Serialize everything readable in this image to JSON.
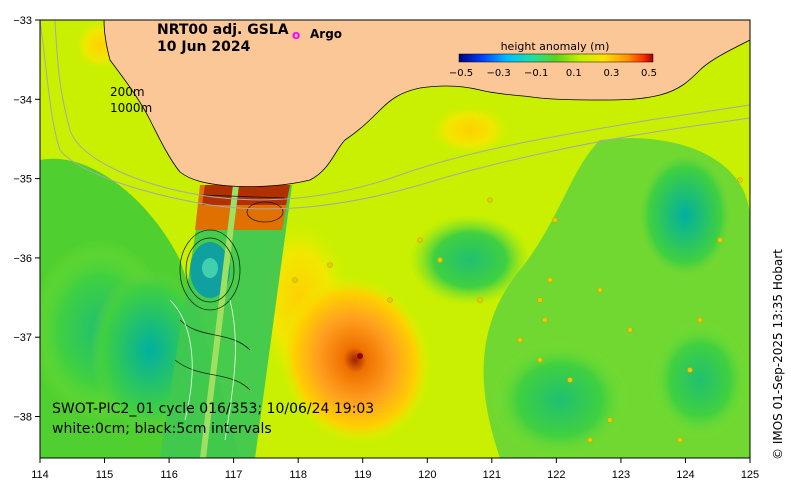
{
  "map": {
    "title_line1": "NRT00 adj. GSLA",
    "title_line2": "10 Jun 2024",
    "argo_symbol": "o",
    "argo_label": "Argo",
    "argo_color": "#ff00ff",
    "contour_200": "200m",
    "contour_1000": "1000m",
    "swot_line1": "SWOT-PIC2_01 cycle 016/353; 10/06/24 19:03",
    "swot_line2": "white:0cm; black:5cm intervals",
    "credit": "© IMOS 01-Sep-2025 13:35 Hobart",
    "land_color": "#fbc797",
    "x_ticks": [
      "114",
      "115",
      "116",
      "117",
      "118",
      "119",
      "120",
      "121",
      "122",
      "123",
      "124",
      "125"
    ],
    "y_ticks": [
      "−33",
      "−34",
      "−35",
      "−36",
      "−37",
      "−38"
    ]
  },
  "legend": {
    "title": "height anomaly (m)",
    "ticks": [
      "−0.5",
      "−0.3",
      "−0.1",
      "0.1",
      "0.3",
      "0.5"
    ],
    "colors": [
      "#00007f",
      "#0040ff",
      "#00bfff",
      "#20e0a0",
      "#60d020",
      "#c0f000",
      "#ffe000",
      "#ff9000",
      "#ff3000",
      "#a00000"
    ]
  }
}
